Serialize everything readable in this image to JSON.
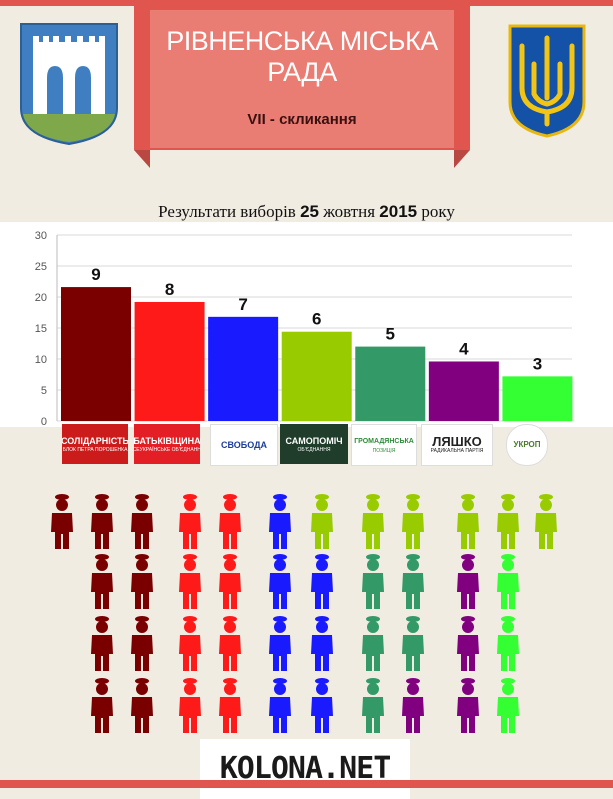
{
  "header": {
    "title_line1": "РІВНЕНСЬКА МІСЬКА",
    "title_line2": "РАДА",
    "convocation_prefix": "VII",
    "convocation_suffix": " - скликання"
  },
  "subtitle": {
    "before": "Результати виборів ",
    "day": "25",
    "month": " жовтня ",
    "year": "2015",
    "after": " року"
  },
  "colors": {
    "banner": "#e0554e",
    "background": "#f1ece2"
  },
  "chart_data": {
    "type": "bar",
    "categories": [
      "Солідарність",
      "Батьківщина",
      "Свобода",
      "Самопоміч",
      "Громадянська позиція",
      "Ляшко",
      "УКРОП"
    ],
    "values": [
      21.6,
      19.2,
      16.8,
      14.4,
      12.0,
      9.6,
      7.2
    ],
    "seat_labels": [
      9,
      8,
      7,
      6,
      5,
      4,
      3
    ],
    "colors": [
      "#7a0000",
      "#ff1a1a",
      "#1a1aff",
      "#99cc00",
      "#339966",
      "#800080",
      "#33ff33"
    ],
    "ylim": [
      0,
      30
    ],
    "yticks": [
      0,
      5,
      10,
      15,
      20,
      25,
      30
    ],
    "grid": true
  },
  "logos": [
    {
      "text": "СОЛІДАРНІСТЬ",
      "small": "БЛОК ПЕТРА ПОРОШЕНКА",
      "bg": "#cc1b1b",
      "fg": "#ffffff"
    },
    {
      "text": "БАТЬКІВЩИНА",
      "small": "ВСЕУКРАЇНСЬКЕ ОБ'ЄДНАННЯ",
      "bg": "#e31e24",
      "fg": "#ffffff"
    },
    {
      "text": "СВОБОДА",
      "small": "",
      "bg": "#ffffff",
      "fg": "#1d3d9b"
    },
    {
      "text": "САМОПОМІЧ",
      "small": "ОБ'ЄДНАННЯ",
      "bg": "#1f3d2a",
      "fg": "#ffffff"
    },
    {
      "text": "ГРОМАДЯНСЬКА",
      "small": "ПОЗИЦІЯ",
      "bg": "#ffffff",
      "fg": "#2e8b3a"
    },
    {
      "text": "ЛЯШКО",
      "small": "РАДИКАЛЬНА ПАРТІЯ",
      "bg": "#ffffff",
      "fg": "#222222"
    },
    {
      "text": "УКРОП",
      "small": "",
      "bg": "#ffffff",
      "fg": "#4a7a2a"
    }
  ],
  "seat_figures": [
    {
      "color": "#7a0000",
      "count": 9
    },
    {
      "color": "#ff1a1a",
      "count": 8
    },
    {
      "color": "#1a1aff",
      "count": 7
    },
    {
      "color": "#99cc00",
      "count": 6
    },
    {
      "color": "#339966",
      "count": 5
    },
    {
      "color": "#800080",
      "count": 4
    },
    {
      "color": "#33ff33",
      "count": 3
    }
  ],
  "brand": "KOLONA.NET"
}
